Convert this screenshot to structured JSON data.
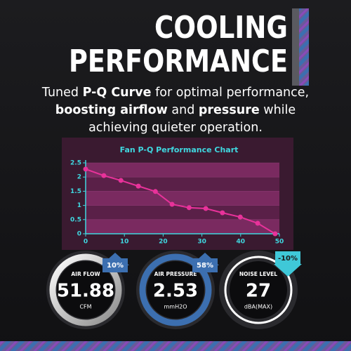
{
  "header": {
    "title_lines": [
      "COOLING",
      "PERFORMANCE"
    ]
  },
  "description": {
    "lines": [
      [
        {
          "text": "Tuned ",
          "bold": false
        },
        {
          "text": "P-Q Curve",
          "bold": true
        },
        {
          "text": " for optimal performance,",
          "bold": false
        }
      ],
      [
        {
          "text": "boosting airflow",
          "bold": true
        },
        {
          "text": " and ",
          "bold": false
        },
        {
          "text": "pressure",
          "bold": true
        },
        {
          "text": " while",
          "bold": false
        }
      ],
      [
        {
          "text": "achieving quieter operation.",
          "bold": false
        }
      ]
    ]
  },
  "chart_data": {
    "type": "line",
    "title": "Fan P-Q Performance Chart",
    "x": [
      0,
      4.7,
      9.1,
      13.6,
      18.0,
      22.3,
      26.7,
      31.0,
      35.3,
      39.9,
      44.4,
      48.9
    ],
    "series": [
      {
        "color": "#e8329a",
        "values": [
          2.28,
          2.05,
          1.88,
          1.68,
          1.49,
          1.04,
          0.92,
          0.89,
          0.74,
          0.59,
          0.37,
          0
        ]
      }
    ],
    "xlim": [
      0,
      50
    ],
    "xticks": [
      0,
      10,
      20,
      30,
      40,
      50
    ],
    "ylim": [
      0,
      2.5
    ],
    "yticks": [
      0,
      0.5,
      1,
      1.5,
      2,
      2.5
    ],
    "grid": true
  },
  "gauges": [
    {
      "label": "AIR FLOW",
      "value": "51.88",
      "unit": "CFM",
      "change": "10%"
    },
    {
      "label": "AIR PRESSURE",
      "value": "2.53",
      "unit": "mmH2O",
      "change": "58%"
    },
    {
      "label": "NOISE LEVEL",
      "value": "27",
      "unit": "dBA(MAX)",
      "change": "-10%"
    }
  ]
}
